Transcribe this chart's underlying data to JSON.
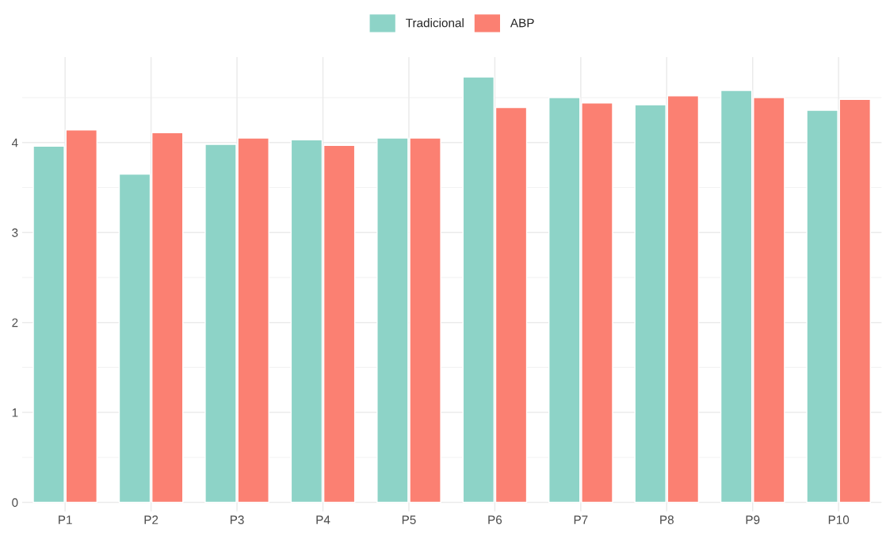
{
  "chart_data": {
    "type": "bar",
    "categories": [
      "P1",
      "P2",
      "P3",
      "P4",
      "P5",
      "P6",
      "P7",
      "P8",
      "P9",
      "P10"
    ],
    "series": [
      {
        "name": "Tradicional",
        "color": "#8dd3c7",
        "values": [
          3.96,
          3.65,
          3.98,
          4.03,
          4.05,
          4.73,
          4.5,
          4.42,
          4.58,
          4.36
        ]
      },
      {
        "name": "ABP",
        "color": "#fb8072",
        "values": [
          4.14,
          4.11,
          4.05,
          3.97,
          4.05,
          4.39,
          4.44,
          4.52,
          4.5,
          4.48
        ]
      }
    ],
    "ylim": [
      -0.1,
      4.95
    ],
    "yticks": [
      0,
      1,
      2,
      3,
      4
    ],
    "grid": true,
    "legend": "top"
  }
}
